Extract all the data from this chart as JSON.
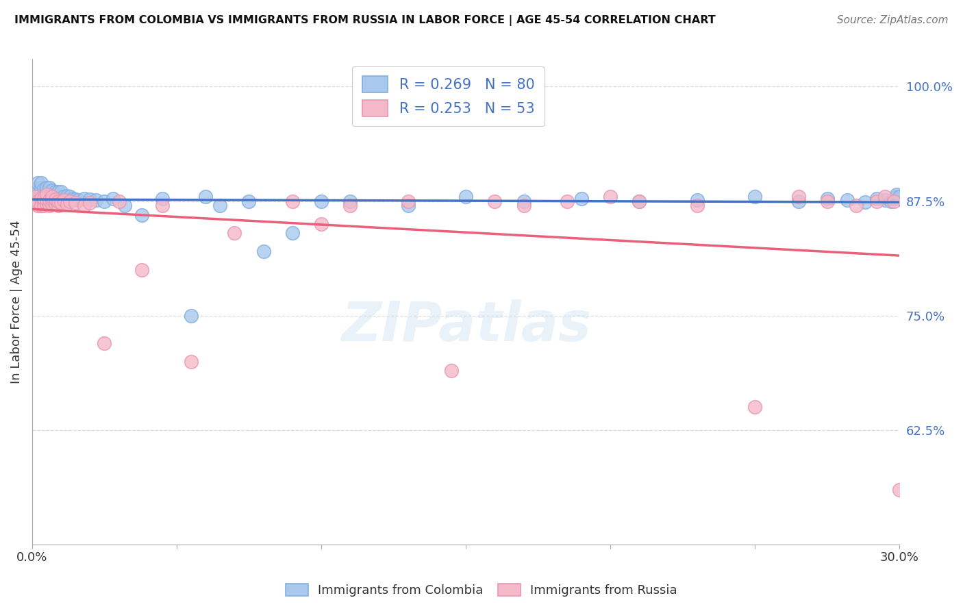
{
  "title": "IMMIGRANTS FROM COLOMBIA VS IMMIGRANTS FROM RUSSIA IN LABOR FORCE | AGE 45-54 CORRELATION CHART",
  "source": "Source: ZipAtlas.com",
  "ylabel": "In Labor Force | Age 45-54",
  "right_ytick_labels": [
    "62.5%",
    "75.0%",
    "87.5%",
    "100.0%"
  ],
  "right_yticks_vals": [
    0.625,
    0.75,
    0.875,
    1.0
  ],
  "colombia_R": 0.269,
  "colombia_N": 80,
  "russia_R": 0.253,
  "russia_N": 53,
  "colombia_color": "#A8C8EE",
  "russia_color": "#F5B8C8",
  "colombia_edge": "#85AEDD",
  "russia_edge": "#E898B0",
  "trend_colombia_color": "#4472C4",
  "trend_russia_color": "#E8607A",
  "background_color": "#ffffff",
  "grid_color": "#dddddd",
  "legend_text_color": "#4472C4",
  "watermark": "ZIPatlas",
  "xlim": [
    0.0,
    0.3
  ],
  "ylim": [
    0.5,
    1.03
  ],
  "colombia_x": [
    0.001,
    0.001,
    0.002,
    0.002,
    0.002,
    0.002,
    0.003,
    0.003,
    0.003,
    0.003,
    0.003,
    0.004,
    0.004,
    0.004,
    0.004,
    0.005,
    0.005,
    0.005,
    0.005,
    0.005,
    0.006,
    0.006,
    0.006,
    0.006,
    0.007,
    0.007,
    0.007,
    0.007,
    0.008,
    0.008,
    0.008,
    0.009,
    0.009,
    0.009,
    0.01,
    0.01,
    0.01,
    0.011,
    0.011,
    0.012,
    0.012,
    0.013,
    0.014,
    0.015,
    0.016,
    0.018,
    0.02,
    0.022,
    0.025,
    0.028,
    0.032,
    0.038,
    0.045,
    0.055,
    0.06,
    0.065,
    0.075,
    0.08,
    0.09,
    0.1,
    0.11,
    0.13,
    0.15,
    0.17,
    0.19,
    0.21,
    0.23,
    0.25,
    0.265,
    0.275,
    0.282,
    0.288,
    0.292,
    0.295,
    0.297,
    0.298,
    0.299,
    0.299,
    0.3,
    0.3
  ],
  "colombia_y": [
    0.875,
    0.878,
    0.882,
    0.886,
    0.89,
    0.895,
    0.875,
    0.88,
    0.885,
    0.89,
    0.895,
    0.872,
    0.878,
    0.883,
    0.888,
    0.875,
    0.88,
    0.885,
    0.89,
    0.872,
    0.876,
    0.88,
    0.885,
    0.89,
    0.873,
    0.878,
    0.882,
    0.887,
    0.875,
    0.88,
    0.885,
    0.876,
    0.88,
    0.885,
    0.875,
    0.88,
    0.885,
    0.876,
    0.88,
    0.877,
    0.881,
    0.88,
    0.878,
    0.877,
    0.876,
    0.878,
    0.877,
    0.876,
    0.875,
    0.878,
    0.87,
    0.86,
    0.878,
    0.75,
    0.88,
    0.87,
    0.875,
    0.82,
    0.84,
    0.875,
    0.875,
    0.87,
    0.88,
    0.875,
    0.878,
    0.875,
    0.876,
    0.88,
    0.875,
    0.878,
    0.876,
    0.874,
    0.878,
    0.876,
    0.875,
    0.878,
    0.88,
    0.882,
    0.878,
    0.88
  ],
  "russia_x": [
    0.001,
    0.001,
    0.002,
    0.002,
    0.003,
    0.003,
    0.004,
    0.004,
    0.004,
    0.005,
    0.005,
    0.005,
    0.006,
    0.006,
    0.007,
    0.007,
    0.007,
    0.008,
    0.008,
    0.009,
    0.009,
    0.01,
    0.011,
    0.012,
    0.013,
    0.015,
    0.018,
    0.02,
    0.025,
    0.03,
    0.038,
    0.045,
    0.055,
    0.07,
    0.09,
    0.1,
    0.11,
    0.13,
    0.145,
    0.16,
    0.17,
    0.185,
    0.2,
    0.21,
    0.23,
    0.25,
    0.265,
    0.275,
    0.285,
    0.292,
    0.295,
    0.298,
    0.3
  ],
  "russia_y": [
    0.875,
    0.88,
    0.87,
    0.875,
    0.878,
    0.87,
    0.875,
    0.87,
    0.878,
    0.872,
    0.877,
    0.882,
    0.87,
    0.876,
    0.872,
    0.877,
    0.88,
    0.872,
    0.877,
    0.87,
    0.875,
    0.873,
    0.876,
    0.872,
    0.875,
    0.873,
    0.87,
    0.873,
    0.72,
    0.875,
    0.8,
    0.87,
    0.7,
    0.84,
    0.875,
    0.85,
    0.87,
    0.875,
    0.69,
    0.875,
    0.87,
    0.875,
    0.88,
    0.875,
    0.87,
    0.65,
    0.88,
    0.875,
    0.87,
    0.875,
    0.88,
    0.875,
    0.56
  ]
}
